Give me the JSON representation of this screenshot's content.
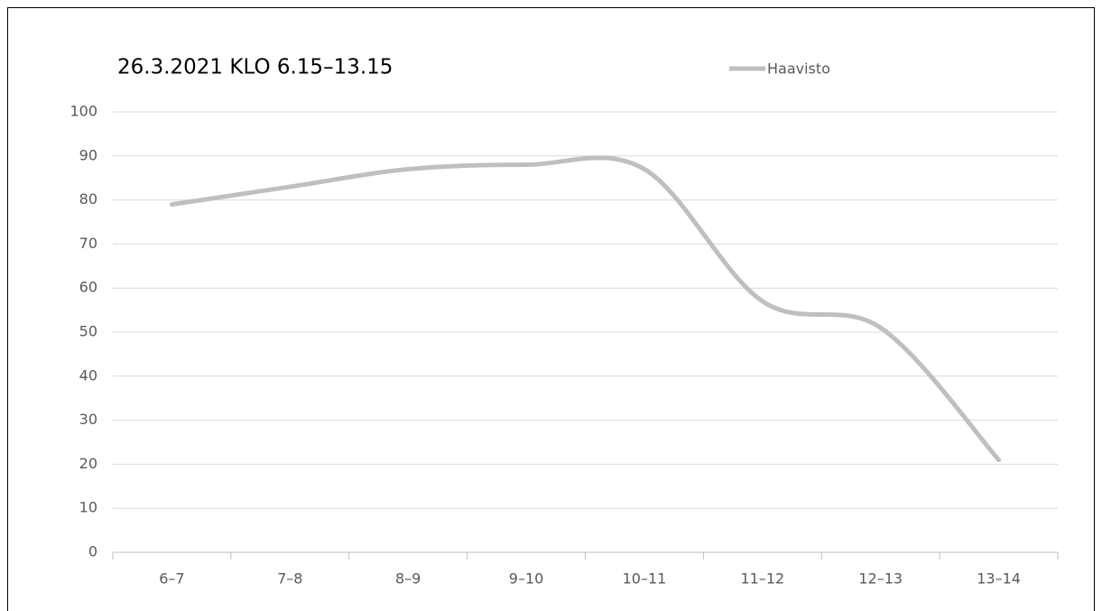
{
  "chart_data": {
    "type": "line",
    "title": "26.3.2021 KLO 6.15–13.15",
    "categories": [
      "6–7",
      "7–8",
      "8–9",
      "9–10",
      "10–11",
      "11–12",
      "12–13",
      "13–14"
    ],
    "series": [
      {
        "name": "Haavisto",
        "color": "#bfbfbf",
        "values": [
          79,
          83,
          87,
          88,
          87,
          57,
          51,
          21
        ]
      }
    ],
    "smooth": true,
    "ylim": [
      0,
      100
    ],
    "yticks": [
      0,
      10,
      20,
      30,
      40,
      50,
      60,
      70,
      80,
      90,
      100
    ],
    "grid": true,
    "legend": "top"
  }
}
